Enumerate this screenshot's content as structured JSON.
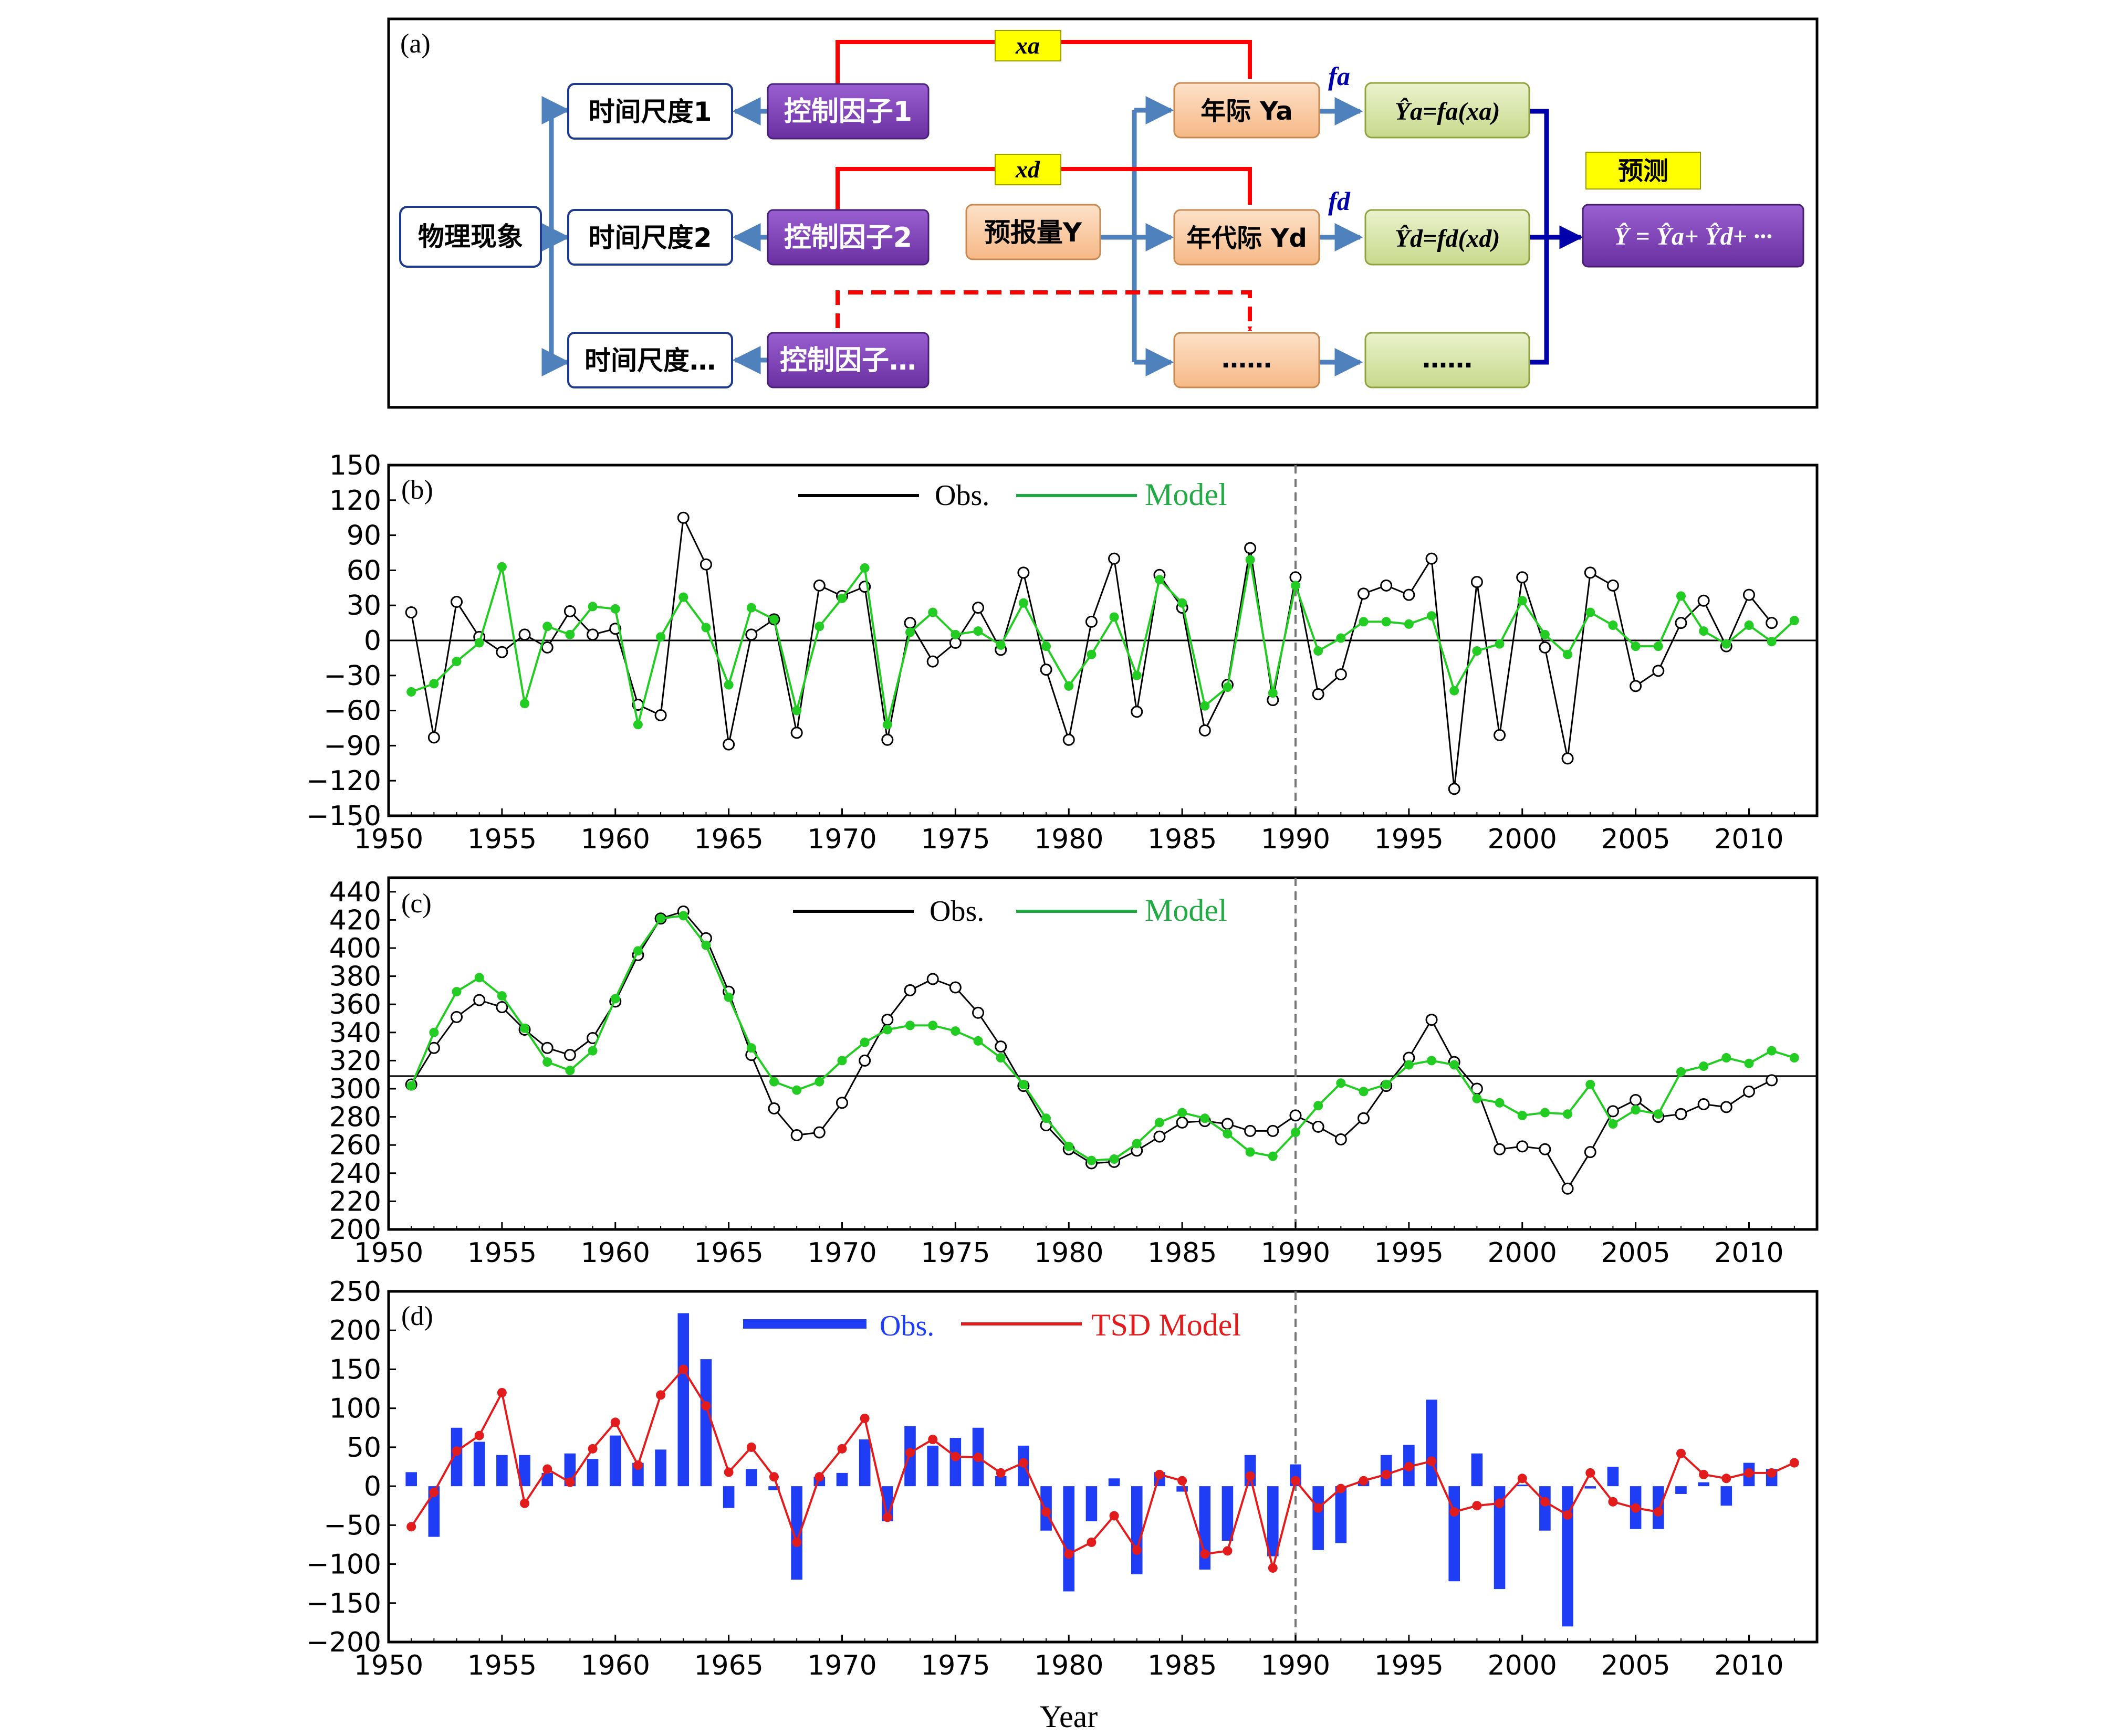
{
  "panel_a": {
    "tag": "(a)",
    "phenomenon": "物理现象",
    "scales": [
      "时间尺度1",
      "时间尺度2",
      "时间尺度…"
    ],
    "factors": [
      "控制因子1",
      "控制因子2",
      "控制因子…"
    ],
    "predictand": "预报量Y",
    "comp1": "年际 Ya",
    "comp2": "年代际 Yd",
    "comp3": "……",
    "model1": "Ŷa=fa(xa)",
    "model2": "Ŷd=fd(xd)",
    "model3": "……",
    "xa": "xa",
    "xd": "xd",
    "fa": "fa",
    "fd": "fd",
    "forecast_label": "预测",
    "forecast_eq": "Ŷ = Ŷa+ Ŷd+ ···",
    "colors": {
      "purple": "#7b3fb0",
      "orange": "#f9c79a",
      "green": "#d6e3a4",
      "yellow": "#ffff00",
      "red": "#ff0000",
      "arrow_blue": "#4f81bd",
      "navy": "#0000aa"
    }
  },
  "panel_b": {
    "tag": "(b)",
    "legend_obs": "Obs.",
    "legend_model": "Model"
  },
  "panel_c": {
    "tag": "(c)",
    "legend_obs": "Obs.",
    "legend_model": "Model"
  },
  "panel_d": {
    "tag": "(d)",
    "legend_obs": "Obs.",
    "legend_model": "TSD Model",
    "xlabel": "Year"
  },
  "chart_data": [
    {
      "panel": "b",
      "type": "line",
      "x_range": [
        1950,
        2013
      ],
      "xticks": [
        1950,
        1955,
        1960,
        1965,
        1970,
        1975,
        1980,
        1985,
        1990,
        1995,
        2000,
        2005,
        2010
      ],
      "ylim": [
        -150,
        150
      ],
      "yticks": [
        -150,
        -120,
        -90,
        -60,
        -30,
        0,
        30,
        60,
        90,
        120,
        150
      ],
      "ytick_labels": [
        "−150",
        "−120",
        "−90",
        "−60",
        "−30",
        "0",
        "30",
        "60",
        "90",
        "120",
        "150"
      ],
      "reference_line": 0,
      "split_year": 1990,
      "legend": "top",
      "series": [
        {
          "name": "Obs.",
          "color": "#000000",
          "marker": "open-circle",
          "x_start": 1951,
          "values": [
            24,
            -83,
            33,
            3,
            -10,
            5,
            -6,
            25,
            5,
            10,
            -55,
            -64,
            105,
            65,
            -89,
            5,
            18,
            -79,
            47,
            38,
            46,
            -85,
            15,
            -18,
            -2,
            28,
            -8,
            58,
            -25,
            -85,
            16,
            70,
            -61,
            56,
            28,
            -77,
            -38,
            79,
            -51,
            54,
            -46,
            -29,
            40,
            47,
            39,
            70,
            -127,
            50,
            -81,
            54,
            -6,
            -101,
            58,
            47,
            -39,
            -26,
            15,
            34,
            -5,
            39,
            15
          ]
        },
        {
          "name": "Model",
          "color": "#22cc22",
          "marker": "dot",
          "x_start": 1951,
          "values": [
            -44,
            -37,
            -18,
            -2,
            63,
            -54,
            12,
            5,
            29,
            27,
            -72,
            3,
            37,
            11,
            -38,
            28,
            18,
            -60,
            12,
            36,
            62,
            -72,
            7,
            24,
            5,
            8,
            -4,
            32,
            -5,
            -39,
            -12,
            20,
            -30,
            52,
            32,
            -56,
            -40,
            69,
            -45,
            47,
            -9,
            2,
            16,
            16,
            14,
            21,
            -43,
            -9,
            -3,
            34,
            5,
            -12,
            24,
            13,
            -5,
            -5,
            38,
            8,
            -3,
            13,
            -1,
            17
          ]
        }
      ]
    },
    {
      "panel": "c",
      "type": "line",
      "x_range": [
        1950,
        2013
      ],
      "xticks": [
        1950,
        1955,
        1960,
        1965,
        1970,
        1975,
        1980,
        1985,
        1990,
        1995,
        2000,
        2005,
        2010
      ],
      "ylim": [
        200,
        450
      ],
      "yticks": [
        200,
        220,
        240,
        260,
        280,
        300,
        320,
        340,
        360,
        380,
        400,
        420,
        440
      ],
      "reference_line": 309,
      "split_year": 1990,
      "legend": "top",
      "series": [
        {
          "name": "Obs.",
          "color": "#000000",
          "marker": "open-circle",
          "x_start": 1951,
          "values": [
            303,
            329,
            351,
            363,
            358,
            342,
            329,
            324,
            336,
            362,
            395,
            421,
            426,
            407,
            369,
            324,
            286,
            267,
            269,
            290,
            320,
            349,
            370,
            378,
            372,
            354,
            330,
            302,
            274,
            257,
            247,
            248,
            256,
            266,
            276,
            277,
            275,
            270,
            270,
            281,
            273,
            264,
            279,
            302,
            322,
            349,
            319,
            300,
            257,
            259,
            257,
            229,
            255,
            284,
            292,
            280,
            282,
            289,
            287,
            298,
            306
          ]
        },
        {
          "name": "Model",
          "color": "#22cc22",
          "marker": "dot",
          "x_start": 1951,
          "values": [
            302,
            340,
            369,
            379,
            366,
            343,
            319,
            313,
            327,
            364,
            398,
            421,
            423,
            402,
            365,
            329,
            305,
            299,
            305,
            320,
            333,
            342,
            345,
            345,
            341,
            334,
            322,
            303,
            279,
            259,
            249,
            250,
            261,
            276,
            283,
            279,
            268,
            255,
            252,
            269,
            288,
            304,
            298,
            303,
            317,
            320,
            317,
            293,
            290,
            281,
            283,
            282,
            303,
            275,
            285,
            282,
            312,
            316,
            322,
            318,
            327,
            322
          ]
        }
      ]
    },
    {
      "panel": "d",
      "type": "bar",
      "x_range": [
        1950,
        2013
      ],
      "xticks": [
        1950,
        1955,
        1960,
        1965,
        1970,
        1975,
        1980,
        1985,
        1990,
        1995,
        2000,
        2005,
        2010
      ],
      "xlabel": "Year",
      "ylim": [
        -200,
        250
      ],
      "yticks": [
        -200,
        -150,
        -100,
        -50,
        0,
        50,
        100,
        150,
        200,
        250
      ],
      "ytick_labels": [
        "−200",
        "−150",
        "−100",
        "−50",
        "0",
        "50",
        "100",
        "150",
        "200",
        "250"
      ],
      "split_year": 1990,
      "legend": "top",
      "series": [
        {
          "name": "Obs.",
          "type": "bar",
          "color": "#1f3df5",
          "x_start": 1951,
          "values": [
            18,
            -65,
            75,
            57,
            40,
            40,
            17,
            42,
            35,
            65,
            30,
            47,
            222,
            163,
            -28,
            22,
            -5,
            -120,
            12,
            17,
            60,
            -45,
            77,
            52,
            62,
            75,
            13,
            52,
            -57,
            -135,
            -45,
            10,
            -113,
            18,
            -7,
            -107,
            -70,
            40,
            -90,
            28,
            -82,
            -73,
            7,
            40,
            53,
            111,
            -122,
            42,
            -132,
            2,
            -57,
            -180,
            -3,
            25,
            -55,
            -55,
            -10,
            5,
            -25,
            30,
            22
          ]
        },
        {
          "name": "TSD Model",
          "type": "line",
          "color": "#e21c1c",
          "x_start": 1951,
          "values": [
            -52,
            -8,
            45,
            65,
            120,
            -22,
            22,
            5,
            48,
            82,
            27,
            117,
            150,
            103,
            18,
            50,
            12,
            -72,
            12,
            48,
            87,
            -40,
            43,
            60,
            38,
            37,
            17,
            30,
            -33,
            -87,
            -72,
            -38,
            -82,
            15,
            7,
            -87,
            -83,
            13,
            -105,
            7,
            -28,
            -3,
            7,
            15,
            25,
            32,
            -33,
            -25,
            -22,
            10,
            -20,
            -37,
            17,
            -20,
            -28,
            -33,
            42,
            15,
            10,
            17,
            17,
            30
          ]
        }
      ]
    }
  ]
}
